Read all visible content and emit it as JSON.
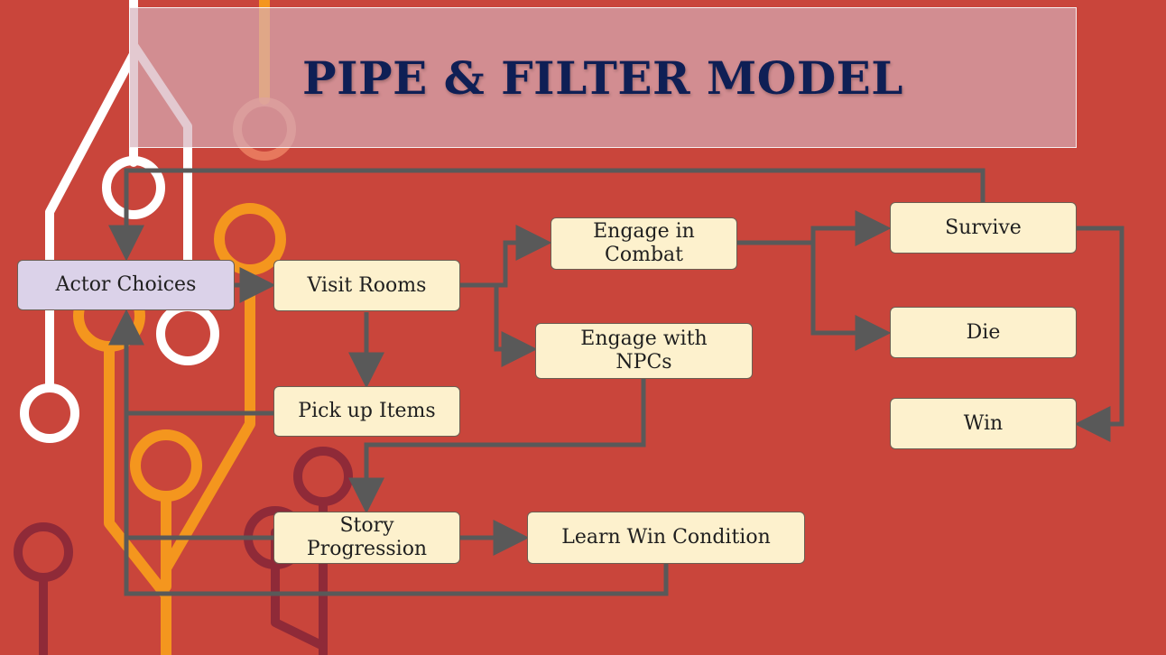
{
  "title": "PIPE & FILTER MODEL",
  "nodes": {
    "actor_choices": "Actor Choices",
    "visit_rooms": "Visit Rooms",
    "engage_combat": "Engage in Combat",
    "engage_npcs": "Engage with NPCs",
    "pick_up_items": "Pick up Items",
    "story_progression": "Story Progression",
    "learn_win_condition": "Learn Win Condition",
    "survive": "Survive",
    "die": "Die",
    "win": "Win"
  },
  "edges": [
    [
      "actor_choices",
      "visit_rooms"
    ],
    [
      "visit_rooms",
      "engage_combat"
    ],
    [
      "visit_rooms",
      "engage_npcs"
    ],
    [
      "visit_rooms",
      "pick_up_items"
    ],
    [
      "engage_npcs",
      "story_progression"
    ],
    [
      "pick_up_items",
      "actor_choices"
    ],
    [
      "story_progression",
      "learn_win_condition"
    ],
    [
      "story_progression",
      "actor_choices"
    ],
    [
      "learn_win_condition",
      "actor_choices"
    ],
    [
      "engage_combat",
      "survive"
    ],
    [
      "engage_combat",
      "die"
    ],
    [
      "survive",
      "actor_choices"
    ],
    [
      "survive",
      "win"
    ]
  ],
  "colors": {
    "background": "#c9453b",
    "node_fill": "#fdf1cd",
    "actor_node_fill": "#dbd2e9",
    "arrow": "#595959",
    "title_text": "#0f1f55"
  }
}
